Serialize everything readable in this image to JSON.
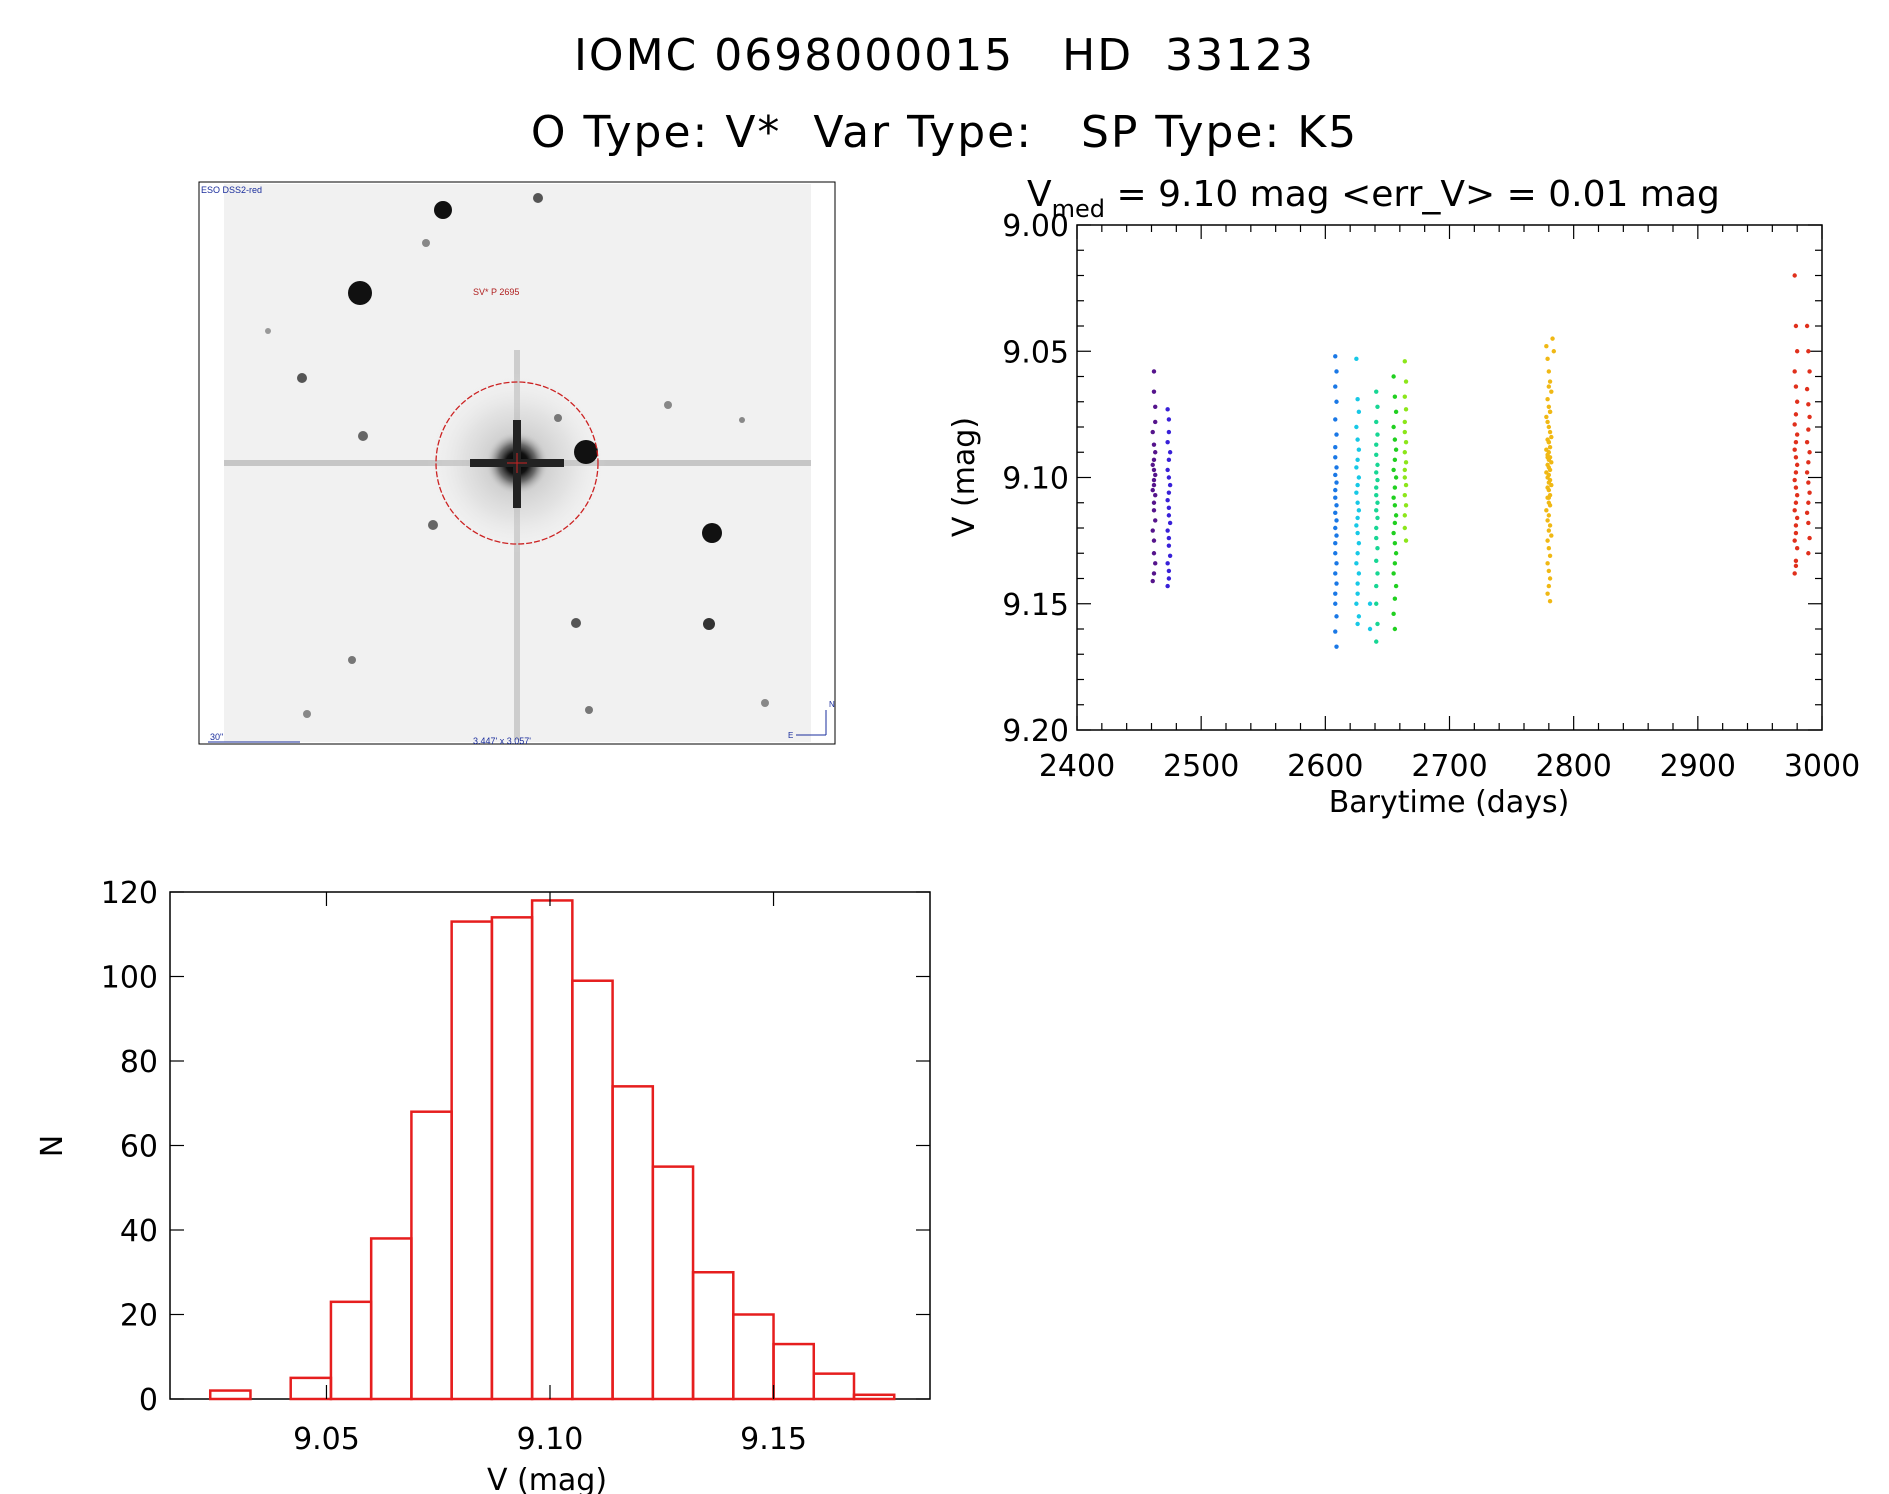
{
  "header": {
    "line1": "IOMC 0698000015   HD  33123",
    "line2": "O Type: V*  Var Type:   SP Type: K5"
  },
  "finder_chart": {
    "survey_label": "ESO DSS2-red",
    "object_label": "SV* P 2695",
    "scale_bar_label": "30\"",
    "fov_label": "3.447' x 3.057'",
    "north_label": "N",
    "east_label": "E",
    "marker_color": "#cc2222"
  },
  "chart_data": [
    {
      "type": "scatter",
      "title_prefix": "V",
      "title_subscript": "med",
      "title_suffix": " = 9.10 mag <err_V> = 0.01 mag",
      "xlabel": "Barytime (days)",
      "ylabel": "V (mag)",
      "xlim": [
        2400,
        3000
      ],
      "ylim": [
        9.2,
        9.0
      ],
      "xticks": [
        2400,
        2500,
        2600,
        2700,
        2800,
        2900,
        3000
      ],
      "yticks": [
        "9.00",
        "9.05",
        "9.10",
        "9.15",
        "9.20"
      ],
      "series": [
        {
          "color": "#55148c",
          "x": [
            2462,
            2462,
            2463,
            2463,
            2461,
            2462,
            2463,
            2462,
            2461,
            2462,
            2463,
            2462,
            2462,
            2461,
            2463,
            2462,
            2462,
            2463,
            2461,
            2462,
            2462,
            2463,
            2462,
            2461
          ],
          "y": [
            9.058,
            9.066,
            9.072,
            9.078,
            9.082,
            9.087,
            9.09,
            9.093,
            9.095,
            9.097,
            9.099,
            9.101,
            9.103,
            9.105,
            9.107,
            9.11,
            9.113,
            9.117,
            9.121,
            9.125,
            9.13,
            9.134,
            9.138,
            9.141
          ]
        },
        {
          "color": "#3820d8",
          "x": [
            2473,
            2474,
            2474,
            2473,
            2475,
            2474,
            2473,
            2474,
            2475,
            2474,
            2473,
            2474,
            2474,
            2475,
            2473,
            2474,
            2474,
            2475,
            2473,
            2474,
            2474,
            2473
          ],
          "y": [
            9.073,
            9.077,
            9.082,
            9.086,
            9.09,
            9.093,
            9.097,
            9.1,
            9.103,
            9.106,
            9.109,
            9.112,
            9.115,
            9.118,
            9.121,
            9.124,
            9.127,
            9.131,
            9.134,
            9.137,
            9.14,
            9.143
          ]
        },
        {
          "color": "#1a78e6",
          "x": [
            2608,
            2609,
            2608,
            2609,
            2608,
            2609,
            2608,
            2608,
            2609,
            2608,
            2609,
            2608,
            2608,
            2609,
            2608,
            2609,
            2608,
            2609,
            2608,
            2608,
            2609,
            2608,
            2609,
            2608,
            2608,
            2609,
            2608,
            2609
          ],
          "y": [
            9.052,
            9.058,
            9.064,
            9.07,
            9.077,
            9.083,
            9.088,
            9.092,
            9.096,
            9.099,
            9.102,
            9.105,
            9.108,
            9.111,
            9.114,
            9.117,
            9.12,
            9.123,
            9.126,
            9.13,
            9.134,
            9.138,
            9.142,
            9.146,
            9.15,
            9.155,
            9.161,
            9.167
          ]
        },
        {
          "color": "#17c8e6",
          "x": [
            2625,
            2626,
            2627,
            2625,
            2626,
            2627,
            2626,
            2625,
            2627,
            2626,
            2625,
            2626,
            2627,
            2626,
            2625,
            2626,
            2627,
            2626,
            2625,
            2627,
            2626,
            2626,
            2625,
            2627,
            2626,
            2636,
            2636
          ],
          "y": [
            9.053,
            9.069,
            9.074,
            9.08,
            9.085,
            9.089,
            9.093,
            9.096,
            9.1,
            9.103,
            9.106,
            9.11,
            9.113,
            9.116,
            9.119,
            9.122,
            9.126,
            9.13,
            9.134,
            9.138,
            9.142,
            9.146,
            9.15,
            9.155,
            9.158,
            9.15,
            9.16
          ]
        },
        {
          "color": "#17d694",
          "x": [
            2641,
            2642,
            2641,
            2642,
            2641,
            2641,
            2642,
            2641,
            2642,
            2641,
            2641,
            2642,
            2641,
            2642,
            2641,
            2641,
            2642,
            2641,
            2642,
            2641,
            2641,
            2642,
            2641
          ],
          "y": [
            9.066,
            9.072,
            9.078,
            9.083,
            9.087,
            9.091,
            9.095,
            9.098,
            9.101,
            9.104,
            9.107,
            9.11,
            9.113,
            9.116,
            9.12,
            9.124,
            9.128,
            9.133,
            9.138,
            9.143,
            9.15,
            9.158,
            9.165
          ]
        },
        {
          "color": "#20d020",
          "x": [
            2655,
            2656,
            2657,
            2655,
            2656,
            2657,
            2656,
            2655,
            2657,
            2656,
            2655,
            2656,
            2657,
            2656,
            2655,
            2656,
            2657,
            2656,
            2655,
            2657,
            2656,
            2655,
            2656
          ],
          "y": [
            9.06,
            9.068,
            9.074,
            9.08,
            9.085,
            9.089,
            9.093,
            9.097,
            9.1,
            9.104,
            9.108,
            9.111,
            9.115,
            9.118,
            9.122,
            9.126,
            9.13,
            9.134,
            9.138,
            9.143,
            9.148,
            9.154,
            9.16
          ]
        },
        {
          "color": "#8ce61a",
          "x": [
            2664,
            2665,
            2664,
            2665,
            2664,
            2664,
            2665,
            2664,
            2665,
            2664,
            2664,
            2665,
            2664,
            2665,
            2664,
            2664,
            2665
          ],
          "y": [
            9.054,
            9.062,
            9.068,
            9.073,
            9.078,
            9.082,
            9.086,
            9.09,
            9.094,
            9.097,
            9.1,
            9.103,
            9.107,
            9.111,
            9.115,
            9.12,
            9.125
          ]
        },
        {
          "color": "#f0b814",
          "x": [
            2778,
            2779,
            2780,
            2781,
            2782,
            2779,
            2780,
            2781,
            2778,
            2779,
            2780,
            2781,
            2782,
            2779,
            2780,
            2781,
            2778,
            2780,
            2779,
            2781,
            2780,
            2782,
            2779,
            2780,
            2781,
            2778,
            2780,
            2779,
            2781,
            2780,
            2782,
            2779,
            2780,
            2781,
            2779,
            2780,
            2781,
            2778,
            2780,
            2779,
            2781,
            2780,
            2782,
            2779,
            2780,
            2781,
            2779,
            2780,
            2781,
            2780,
            2779,
            2781,
            2780,
            2779,
            2780,
            2781,
            2780,
            2783,
            2784
          ],
          "y": [
            9.048,
            9.053,
            9.058,
            9.062,
            9.066,
            9.069,
            9.072,
            9.074,
            9.076,
            9.078,
            9.08,
            9.082,
            9.084,
            9.085,
            9.086,
            9.088,
            9.089,
            9.09,
            9.091,
            9.092,
            9.093,
            9.094,
            9.095,
            9.096,
            9.097,
            9.098,
            9.099,
            9.1,
            9.101,
            9.102,
            9.103,
            9.104,
            9.105,
            9.107,
            9.108,
            9.11,
            9.111,
            9.113,
            9.115,
            9.117,
            9.119,
            9.121,
            9.123,
            9.125,
            9.128,
            9.131,
            9.134,
            9.137,
            9.14,
            9.143,
            9.146,
            9.149,
            9.108,
            9.092,
            9.086,
            9.074,
            9.064,
            9.045,
            9.05
          ]
        },
        {
          "color": "#e0301c",
          "x": [
            2978,
            2979,
            2980,
            2978,
            2979,
            2980,
            2979,
            2978,
            2980,
            2979,
            2978,
            2979,
            2980,
            2979,
            2978,
            2979,
            2980,
            2979,
            2978,
            2980,
            2979,
            2979,
            2978,
            2980,
            2979,
            2978,
            2979,
            2988,
            2989,
            2990,
            2988,
            2989,
            2990,
            2989,
            2988,
            2990,
            2989,
            2988,
            2989,
            2990,
            2989,
            2988,
            2989,
            2990,
            2989
          ],
          "y": [
            9.02,
            9.04,
            9.05,
            9.058,
            9.064,
            9.07,
            9.075,
            9.079,
            9.083,
            9.086,
            9.089,
            9.092,
            9.095,
            9.098,
            9.101,
            9.104,
            9.107,
            9.11,
            9.113,
            9.116,
            9.119,
            9.122,
            9.125,
            9.128,
            9.133,
            9.138,
            9.135,
            9.04,
            9.05,
            9.058,
            9.065,
            9.071,
            9.076,
            9.081,
            9.086,
            9.09,
            9.094,
            9.098,
            9.102,
            9.106,
            9.11,
            9.114,
            9.118,
            9.124,
            9.13
          ]
        }
      ]
    },
    {
      "type": "bar",
      "style": "outline-histogram",
      "xlabel": "V (mag)",
      "ylabel": "N",
      "xlim": [
        9.015,
        9.185
      ],
      "ylim": [
        0,
        120
      ],
      "xticks": [
        "9.05",
        "9.10",
        "9.15"
      ],
      "xtick_values": [
        9.05,
        9.1,
        9.15
      ],
      "yticks": [
        0,
        20,
        40,
        60,
        80,
        100,
        120
      ],
      "bin_width": 0.009,
      "bin_starts": [
        9.024,
        9.033,
        9.042,
        9.051,
        9.06,
        9.069,
        9.078,
        9.087,
        9.096,
        9.105,
        9.114,
        9.123,
        9.132,
        9.141,
        9.15,
        9.159,
        9.168
      ],
      "values": [
        2,
        0,
        5,
        23,
        38,
        68,
        113,
        114,
        118,
        99,
        74,
        55,
        30,
        20,
        13,
        6,
        1
      ],
      "color": "#e61e1e"
    }
  ]
}
